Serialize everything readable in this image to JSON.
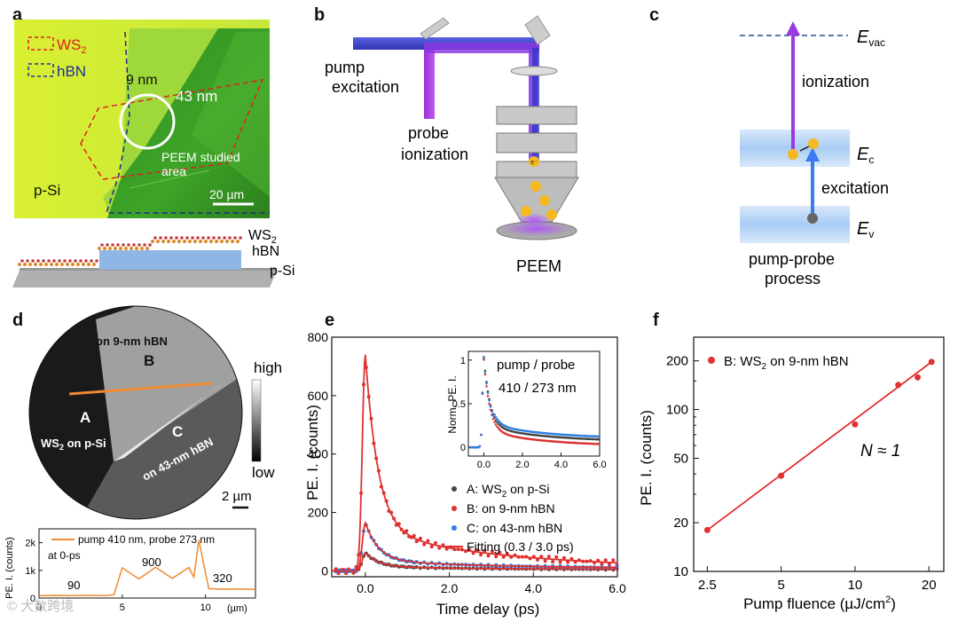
{
  "panel_a": {
    "label": "a",
    "legend": [
      {
        "text": "WS",
        "sub": "2",
        "color": "#e02020"
      },
      {
        "text": "hBN",
        "color": "#2030a0"
      }
    ],
    "thickness_9": "9 nm",
    "thickness_43": "43 nm",
    "area_line1": "PEEM studied",
    "area_line2": "area",
    "substrate": "p-Si",
    "scale": "20 µm",
    "schematic_ws2": "WS",
    "schematic_ws2_sub": "2",
    "schematic_hbn": "hBN",
    "schematic_psi": "p-Si"
  },
  "panel_b": {
    "label": "b",
    "pump_line1": "pump",
    "pump_line2": "excitation",
    "probe_line1": "probe",
    "probe_line2": "ionization",
    "peem": "PEEM",
    "electron": "e⁻"
  },
  "panel_c": {
    "label": "c",
    "evac": "E",
    "evac_sub": "vac",
    "ec": "E",
    "ec_sub": "c",
    "ev": "E",
    "ev_sub": "v",
    "ionization": "ionization",
    "excitation": "excitation",
    "process_line1": "pump-probe",
    "process_line2": "process",
    "electron": "e⁻",
    "hole": "h⁺"
  },
  "panel_d": {
    "label": "d",
    "region_b": "B",
    "region_b_desc": "on 9-nm hBN",
    "region_a": "A",
    "region_a_desc": "WS",
    "region_a_desc_sub": "2",
    "region_a_desc_tail": " on p-Si",
    "region_c": "C",
    "region_c_desc": "on 43-nm hBN",
    "cbar_high": "high",
    "cbar_low": "low",
    "scale": "2 µm",
    "profile": {
      "ylabel": "PE. I. (counts)",
      "yticks": [
        "0",
        "1k",
        "2k"
      ],
      "xticks": [
        "0",
        "5",
        "10"
      ],
      "xunit": "(µm)",
      "legend": "pump 410 nm, probe 273 nm",
      "note": "at 0-ps",
      "levels": [
        "90",
        "900",
        "320"
      ],
      "color": "#f08a30"
    }
  },
  "panel_e": {
    "label": "e",
    "xlabel": "Time delay (ps)",
    "ylabel": "PE. I. (counts)",
    "yticks": [
      "0",
      "200",
      "400",
      "600",
      "800"
    ],
    "xticks": [
      "0.0",
      "2.0",
      "4.0",
      "6.0"
    ],
    "legend": [
      {
        "text": "A: WS",
        "sub": "2",
        "tail": " on p-Si",
        "color": "#444444"
      },
      {
        "text": "B: on 9-nm hBN",
        "color": "#e03030"
      },
      {
        "text": "C: on 43-nm hBN",
        "color": "#2e7fe0"
      },
      {
        "text": "Fitting (0.3 / 3.0 ps)",
        "color": "#e03030",
        "line": true
      }
    ],
    "inset": {
      "ylabel": "Norm. PE. I.",
      "yticks": [
        "0",
        "0.5",
        "1"
      ],
      "xticks": [
        "0.0",
        "2.0",
        "4.0",
        "6.0"
      ],
      "text_line1": "pump / probe",
      "text_line2": "410 / 273 nm"
    }
  },
  "panel_f": {
    "label": "f",
    "xlabel": "Pump fluence (µJ/cm",
    "xlabel_sup": "2",
    "xlabel_tail": ")",
    "ylabel": "PE. I. (counts)",
    "yticks": [
      "10",
      "20",
      "50",
      "100",
      "200"
    ],
    "xticks": [
      "2.5",
      "5",
      "10",
      "20"
    ],
    "legend": "B: WS",
    "legend_sub": "2",
    "legend_tail": " on 9-nm hBN",
    "annotation": "N ≈ 1"
  },
  "chart_data": [
    {
      "type": "line",
      "panel": "d-profile",
      "xlabel": "(µm)",
      "ylabel": "PE. I. (counts)",
      "xlim": [
        0,
        13
      ],
      "ylim": [
        0,
        2500
      ],
      "series": [
        {
          "name": "pump 410 nm, probe 273 nm",
          "x": [
            0,
            1,
            2,
            3,
            4,
            4.5,
            5,
            6,
            7,
            8,
            9,
            9.3,
            9.6,
            9.9,
            10.2,
            11,
            12,
            13
          ],
          "y": [
            90,
            95,
            85,
            100,
            90,
            120,
            900,
            880,
            920,
            900,
            910,
            950,
            2100,
            1200,
            340,
            320,
            330,
            310
          ]
        }
      ]
    },
    {
      "type": "scatter",
      "panel": "e",
      "xlabel": "Time delay (ps)",
      "ylabel": "PE. I. (counts)",
      "xlim": [
        -0.8,
        6.0
      ],
      "ylim": [
        -20,
        800
      ],
      "series": [
        {
          "name": "A: WS2 on p-Si",
          "decay": [
            0.3,
            3.0
          ],
          "peak": 60,
          "base": 4
        },
        {
          "name": "B: on 9-nm hBN",
          "decay": [
            0.3,
            3.0
          ],
          "peak": 735,
          "base": 10
        },
        {
          "name": "C: on 43-nm hBN",
          "decay": [
            0.3,
            3.0
          ],
          "peak": 160,
          "base": 8
        },
        {
          "name": "Fitting (0.3 / 3.0 ps)",
          "fit": true
        }
      ]
    },
    {
      "type": "scatter",
      "panel": "f",
      "xlabel": "Pump fluence (µJ/cm2)",
      "ylabel": "PE. I. (counts)",
      "xscale": "log",
      "yscale": "log",
      "xlim": [
        2.2,
        23
      ],
      "ylim": [
        10,
        280
      ],
      "series": [
        {
          "name": "B: WS2 on 9-nm hBN",
          "x": [
            2.5,
            5,
            10,
            15,
            18,
            20.5
          ],
          "y": [
            18,
            39,
            81,
            142,
            158,
            197
          ]
        }
      ],
      "fit_x": [
        2.5,
        20.5
      ],
      "fit_y": [
        18,
        197
      ]
    }
  ]
}
